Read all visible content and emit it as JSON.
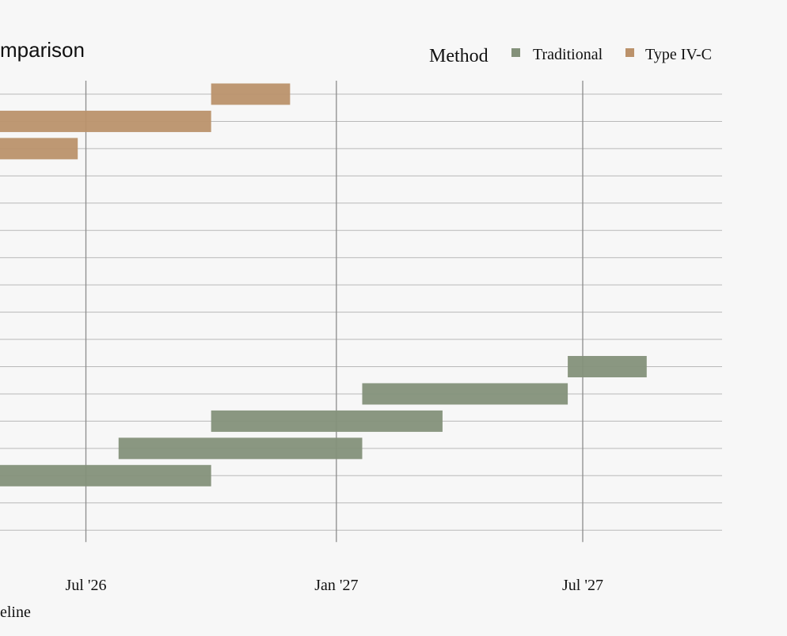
{
  "chart_data": {
    "type": "gantt",
    "title": "mparison",
    "xlabel": "eline",
    "x_axis": {
      "type": "date",
      "ticks": [
        {
          "date": "2026-07-01",
          "label": "Jul '26"
        },
        {
          "date": "2027-01-01",
          "label": "Jan '27"
        },
        {
          "date": "2027-07-01",
          "label": "Jul '27"
        }
      ]
    },
    "legend": {
      "title": "Method",
      "placement": "top-right",
      "entries": [
        {
          "name": "Traditional",
          "color": "#84917a"
        },
        {
          "name": "Type IV-C",
          "color": "#bb926b"
        }
      ]
    },
    "row_count": 17,
    "bars": [
      {
        "series": "Type IV-C",
        "row": 0,
        "start": "2026-10-01",
        "end": "2026-11-28"
      },
      {
        "series": "Type IV-C",
        "row": 1,
        "start": "2026-03-01",
        "end": "2026-10-01"
      },
      {
        "series": "Type IV-C",
        "row": 2,
        "start": "2026-03-01",
        "end": "2026-06-25"
      },
      {
        "series": "Traditional",
        "row": 10,
        "start": "2027-06-20",
        "end": "2027-08-17"
      },
      {
        "series": "Traditional",
        "row": 11,
        "start": "2027-01-20",
        "end": "2027-06-20"
      },
      {
        "series": "Traditional",
        "row": 12,
        "start": "2026-10-01",
        "end": "2027-03-20"
      },
      {
        "series": "Traditional",
        "row": 13,
        "start": "2026-07-25",
        "end": "2027-01-20"
      },
      {
        "series": "Traditional",
        "row": 14,
        "start": "2026-03-01",
        "end": "2026-10-01"
      }
    ]
  }
}
